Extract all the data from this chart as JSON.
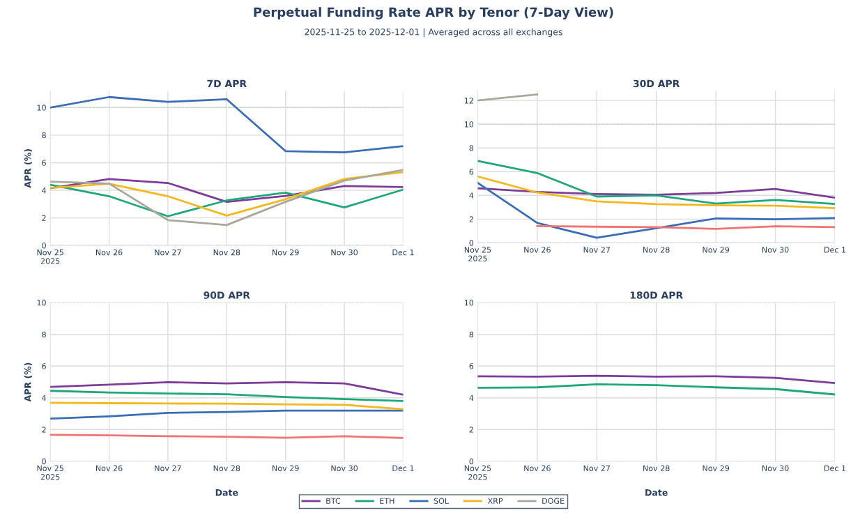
{
  "chart_data": [
    {
      "type": "other",
      "title": "Perpetual Funding Rate APR by Tenor (7-Day View)",
      "subtitle": "2025-11-25 to 2025-12-01 | Averaged across all exchanges"
    },
    {
      "type": "line",
      "title": "7D APR",
      "ylabel": "APR (%)",
      "x": [
        "2025-11-25",
        "2025-11-26",
        "2025-11-27",
        "2025-11-28",
        "2025-11-29",
        "2025-11-30",
        "2025-12-01"
      ],
      "xlim": [
        "2025-11-25",
        "2025-12-01"
      ],
      "xticks": [
        {
          "value": "2025-11-25",
          "label": "Nov 25\n2025"
        },
        {
          "value": "2025-11-26",
          "label": "Nov 26"
        },
        {
          "value": "2025-11-27",
          "label": "Nov 27"
        },
        {
          "value": "2025-11-28",
          "label": "Nov 28"
        },
        {
          "value": "2025-11-29",
          "label": "Nov 29"
        },
        {
          "value": "2025-11-30",
          "label": "Nov 30"
        },
        {
          "value": "2025-12-01",
          "label": "Dec 1"
        }
      ],
      "ylim": [
        0,
        11.2
      ],
      "yticks": [
        0,
        2,
        4,
        6,
        8,
        10
      ],
      "grid": true,
      "legend": "bottom",
      "ref_lines": [
        {
          "axis": "y",
          "value": 10,
          "color": "#c5d9c5",
          "line_style": "dotted"
        },
        {
          "axis": "y",
          "value": 0,
          "color": "#b8bcc4",
          "line_style": "dashed"
        }
      ],
      "series": [
        {
          "name": "BTC",
          "color": "#7d3c98",
          "values": [
            4.15,
            4.82,
            4.53,
            3.16,
            3.59,
            4.31,
            4.24
          ]
        },
        {
          "name": "ETH",
          "color": "#1fa67a",
          "values": [
            4.4,
            3.57,
            2.12,
            3.27,
            3.83,
            2.76,
            4.05
          ]
        },
        {
          "name": "SOL",
          "color": "#3a6db5",
          "values": [
            10.0,
            10.76,
            10.41,
            10.6,
            6.84,
            6.75,
            7.2
          ]
        },
        {
          "name": "XRP",
          "color": "#f2b81e",
          "values": [
            4.17,
            4.47,
            3.57,
            2.16,
            3.35,
            4.82,
            5.32
          ]
        },
        {
          "name": "DOGE",
          "color": "#a8a89c",
          "values": [
            4.63,
            4.49,
            1.84,
            1.48,
            3.16,
            4.7,
            5.48
          ]
        }
      ]
    },
    {
      "type": "line",
      "title": "30D APR",
      "x": [
        "2025-11-25",
        "2025-11-26",
        "2025-11-27",
        "2025-11-28",
        "2025-11-29",
        "2025-11-30",
        "2025-12-01"
      ],
      "xlim": [
        "2025-11-25",
        "2025-12-01"
      ],
      "xticks": [
        {
          "value": "2025-11-25",
          "label": "Nov 25\n2025"
        },
        {
          "value": "2025-11-26",
          "label": "Nov 26"
        },
        {
          "value": "2025-11-27",
          "label": "Nov 27"
        },
        {
          "value": "2025-11-28",
          "label": "Nov 28"
        },
        {
          "value": "2025-11-29",
          "label": "Nov 29"
        },
        {
          "value": "2025-11-30",
          "label": "Nov 30"
        },
        {
          "value": "2025-12-01",
          "label": "Dec 1"
        }
      ],
      "ylim": [
        0,
        12.8
      ],
      "yticks": [
        0,
        2,
        4,
        6,
        8,
        10,
        12
      ],
      "grid": true,
      "legend": "bottom",
      "ref_lines": [
        {
          "axis": "y",
          "value": 10,
          "color": "#c5d9c5",
          "line_style": "dotted"
        },
        {
          "axis": "y",
          "value": 0,
          "color": "#b8bcc4",
          "line_style": "dashed"
        }
      ],
      "series": [
        {
          "name": "BTC",
          "color": "#7d3c98",
          "values": [
            4.6,
            4.29,
            4.12,
            4.05,
            4.2,
            4.54,
            3.8
          ]
        },
        {
          "name": "ETH",
          "color": "#1fa67a",
          "values": [
            6.9,
            5.88,
            3.9,
            4.0,
            3.3,
            3.62,
            3.28
          ]
        },
        {
          "name": "SOL",
          "color": "#3a6db5",
          "values": [
            5.05,
            1.68,
            0.43,
            1.24,
            2.05,
            1.98,
            2.09
          ]
        },
        {
          "name": "XRP",
          "color": "#f2b81e",
          "values": [
            5.59,
            4.24,
            3.5,
            3.26,
            3.16,
            3.13,
            2.92
          ]
        },
        {
          "name": "DOGE",
          "color": "#a8a89c",
          "values": [
            12.0,
            12.51,
            null,
            null,
            null,
            null,
            null
          ]
        },
        {
          "color": "#f07470",
          "values": [
            null,
            1.41,
            1.36,
            1.32,
            1.17,
            1.39,
            1.32
          ]
        }
      ]
    },
    {
      "type": "line",
      "title": "90D APR",
      "ylabel": "APR (%)",
      "xlabel": "Date",
      "x": [
        "2025-11-25",
        "2025-11-26",
        "2025-11-27",
        "2025-11-28",
        "2025-11-29",
        "2025-11-30",
        "2025-12-01"
      ],
      "xlim": [
        "2025-11-25",
        "2025-12-01"
      ],
      "xticks": [
        {
          "value": "2025-11-25",
          "label": "Nov 25\n2025"
        },
        {
          "value": "2025-11-26",
          "label": "Nov 26"
        },
        {
          "value": "2025-11-27",
          "label": "Nov 27"
        },
        {
          "value": "2025-11-28",
          "label": "Nov 28"
        },
        {
          "value": "2025-11-29",
          "label": "Nov 29"
        },
        {
          "value": "2025-11-30",
          "label": "Nov 30"
        },
        {
          "value": "2025-12-01",
          "label": "Dec 1"
        }
      ],
      "ylim": [
        0,
        10
      ],
      "yticks": [
        0,
        2,
        4,
        6,
        8,
        10
      ],
      "grid": true,
      "legend": "bottom",
      "ref_lines": [
        {
          "axis": "y",
          "value": 10,
          "color": "#a8dca8",
          "line_style": "dotted"
        },
        {
          "axis": "y",
          "value": 0,
          "color": "#b8bcc4",
          "line_style": "dashed"
        }
      ],
      "series": [
        {
          "name": "BTC",
          "color": "#7d3c98",
          "values": [
            4.69,
            4.83,
            4.98,
            4.91,
            4.98,
            4.91,
            4.2
          ]
        },
        {
          "name": "ETH",
          "color": "#1fa67a",
          "values": [
            4.44,
            4.34,
            4.27,
            4.23,
            4.05,
            3.92,
            3.8
          ]
        },
        {
          "name": "SOL",
          "color": "#3a6db5",
          "values": [
            2.69,
            2.83,
            3.05,
            3.11,
            3.19,
            3.19,
            3.19
          ]
        },
        {
          "name": "XRP",
          "color": "#f2b81e",
          "values": [
            3.69,
            3.66,
            3.64,
            3.63,
            3.59,
            3.56,
            3.28
          ]
        },
        {
          "color": "#f07470",
          "values": [
            1.67,
            1.63,
            1.58,
            1.55,
            1.48,
            1.58,
            1.47
          ]
        }
      ]
    },
    {
      "type": "line",
      "title": "180D APR",
      "xlabel": "Date",
      "x": [
        "2025-11-25",
        "2025-11-26",
        "2025-11-27",
        "2025-11-28",
        "2025-11-29",
        "2025-11-30",
        "2025-12-01"
      ],
      "xlim": [
        "2025-11-25",
        "2025-12-01"
      ],
      "xticks": [
        {
          "value": "2025-11-25",
          "label": "Nov 25\n2025"
        },
        {
          "value": "2025-11-26",
          "label": "Nov 26"
        },
        {
          "value": "2025-11-27",
          "label": "Nov 27"
        },
        {
          "value": "2025-11-28",
          "label": "Nov 28"
        },
        {
          "value": "2025-11-29",
          "label": "Nov 29"
        },
        {
          "value": "2025-11-30",
          "label": "Nov 30"
        },
        {
          "value": "2025-12-01",
          "label": "Dec 1"
        }
      ],
      "ylim": [
        0,
        10
      ],
      "yticks": [
        0,
        2,
        4,
        6,
        8,
        10
      ],
      "grid": true,
      "legend": "bottom",
      "ref_lines": [
        {
          "axis": "y",
          "value": 10,
          "color": "#a8dca8",
          "line_style": "dotted"
        },
        {
          "axis": "y",
          "value": 0,
          "color": "#b8bcc4",
          "line_style": "dashed"
        }
      ],
      "series": [
        {
          "name": "BTC",
          "color": "#7d3c98",
          "values": [
            5.36,
            5.33,
            5.39,
            5.33,
            5.36,
            5.26,
            4.93
          ]
        },
        {
          "name": "ETH",
          "color": "#1fa67a",
          "values": [
            4.63,
            4.66,
            4.85,
            4.8,
            4.66,
            4.55,
            4.21
          ]
        }
      ]
    }
  ]
}
